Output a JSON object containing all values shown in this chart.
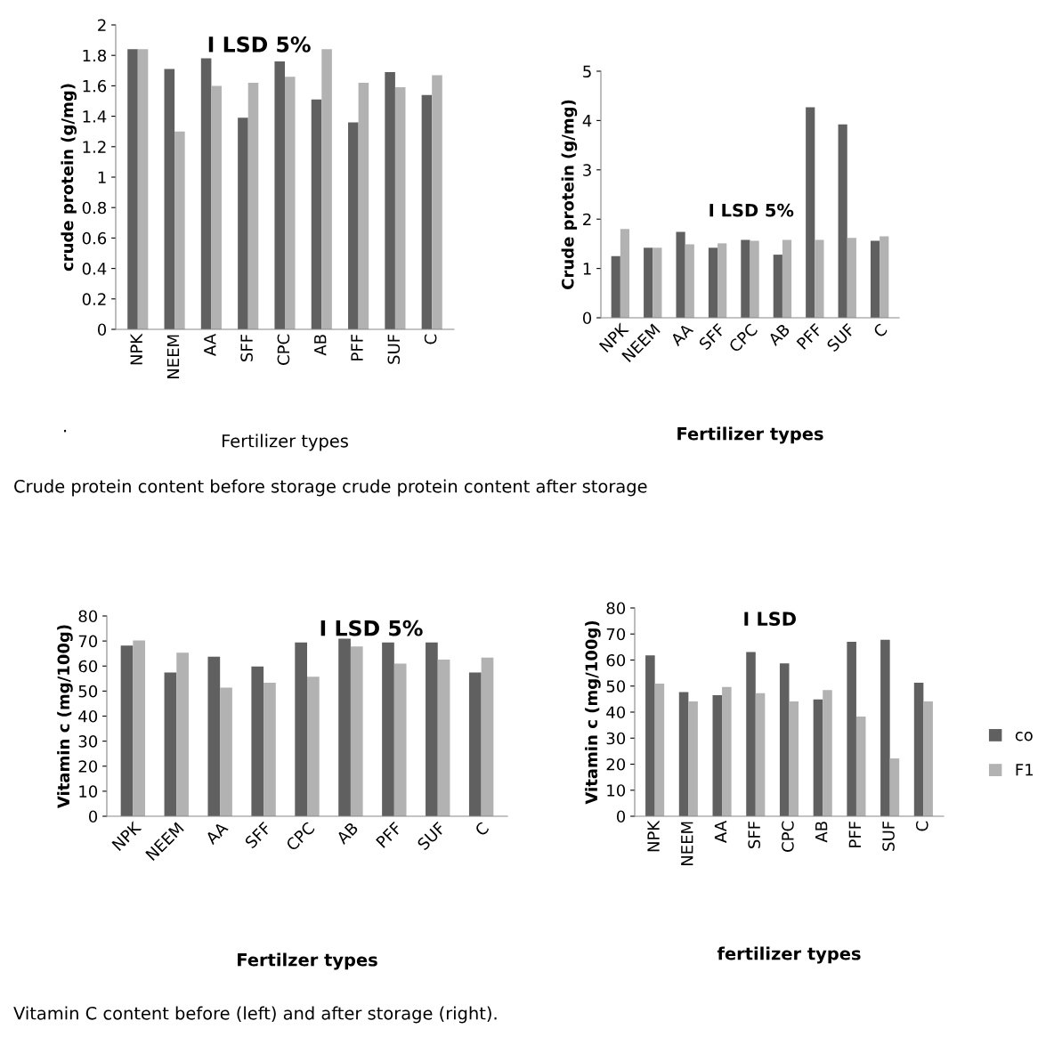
{
  "chart_data": [
    {
      "type": "bar",
      "ylabel": "crude protein (g/mg)",
      "xlabel": "Fertilizer types",
      "categories": [
        "NPK",
        "NEEM",
        "AA",
        "SFF",
        "CPC",
        "AB",
        "PFF",
        "SUF",
        "C"
      ],
      "ylim": [
        0,
        2
      ],
      "yticks": [
        0,
        0.2,
        0.4,
        0.6,
        0.8,
        1,
        1.2,
        1.4,
        1.6,
        1.8,
        2
      ],
      "grid": false,
      "legend": false,
      "series": [
        {
          "color": "#606060",
          "values": [
            1.84,
            1.71,
            1.78,
            1.39,
            1.76,
            1.51,
            1.36,
            1.69,
            1.54
          ]
        },
        {
          "color": "#b2b2b2",
          "values": [
            1.84,
            1.3,
            1.6,
            1.62,
            1.66,
            1.84,
            1.62,
            1.59,
            1.67
          ]
        }
      ],
      "annotations": [
        "I LSD 5%",
        ".",
        "Crude protein content before storage crude protein content after storage"
      ]
    },
    {
      "type": "bar",
      "ylabel": "Crude protein (g/mg)",
      "xlabel": "Fertilizer types",
      "categories": [
        "NPK",
        "NEEM",
        "AA",
        "SFF",
        "CPC",
        "AB",
        "PFF",
        "SUF",
        "C"
      ],
      "ylim": [
        0,
        5
      ],
      "yticks": [
        0,
        1,
        2,
        3,
        4,
        5
      ],
      "grid": false,
      "legend": false,
      "series": [
        {
          "color": "#606060",
          "values": [
            1.25,
            1.42,
            1.74,
            1.42,
            1.58,
            1.28,
            4.27,
            3.92,
            1.56
          ]
        },
        {
          "color": "#b2b2b2",
          "values": [
            1.8,
            1.42,
            1.49,
            1.51,
            1.56,
            1.58,
            1.58,
            1.62,
            1.65
          ]
        }
      ],
      "annotations": [
        "I LSD 5%"
      ]
    },
    {
      "type": "bar",
      "ylabel": "Vitamin c (mg/100g)",
      "xlabel": "Fertilzer types",
      "categories": [
        "NPK",
        "NEEM",
        "AA",
        "SFF",
        "CPC",
        "AB",
        "PFF",
        "SUF",
        "C"
      ],
      "ylim": [
        0,
        80
      ],
      "yticks": [
        0,
        10,
        20,
        30,
        40,
        50,
        60,
        70,
        80
      ],
      "grid": false,
      "legend": false,
      "series": [
        {
          "color": "#606060",
          "values": [
            68.2,
            57.4,
            63.7,
            59.8,
            69.4,
            70.9,
            69.4,
            69.4,
            57.4
          ]
        },
        {
          "color": "#b2b2b2",
          "values": [
            70.2,
            65.3,
            51.4,
            53.3,
            55.7,
            67.8,
            61.0,
            62.6,
            63.4
          ]
        }
      ],
      "annotations": [
        "I LSD 5%",
        "Vitamin C content before (left) and after storage (right)."
      ]
    },
    {
      "type": "bar",
      "ylabel": "Vitamin c (mg/100g)",
      "xlabel": "fertilizer types",
      "categories": [
        "NPK",
        "NEEM",
        "AA",
        "SFF",
        "CPC",
        "AB",
        "PFF",
        "SUF",
        "C"
      ],
      "ylim": [
        0,
        80
      ],
      "yticks": [
        0,
        10,
        20,
        30,
        40,
        50,
        60,
        70,
        80
      ],
      "grid": false,
      "legend": "right",
      "series": [
        {
          "name": "co",
          "color": "#606060",
          "values": [
            61.8,
            47.7,
            46.5,
            63.1,
            58.7,
            44.9,
            67.0,
            67.8,
            51.3
          ]
        },
        {
          "name": "F1",
          "color": "#b2b2b2",
          "values": [
            50.9,
            44.1,
            49.7,
            47.3,
            44.1,
            48.5,
            38.3,
            22.2,
            44.1
          ]
        }
      ],
      "annotations": [
        "I LSD"
      ]
    }
  ]
}
